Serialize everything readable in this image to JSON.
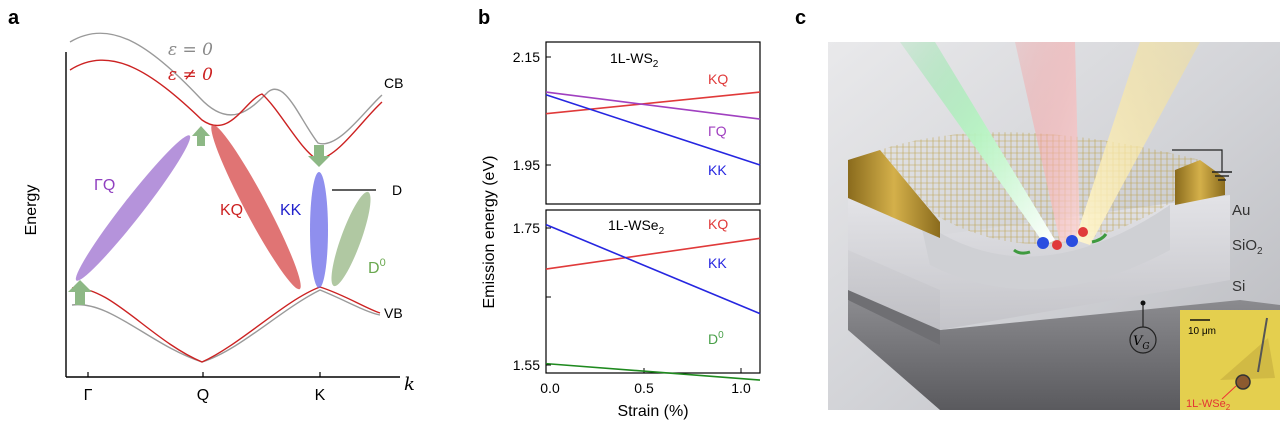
{
  "panel_labels": {
    "a": "a",
    "b": "b",
    "c": "c"
  },
  "panel_a": {
    "legend": {
      "eps_zero": "ε = 0",
      "eps_nonzero": "ε ≠ 0"
    },
    "y_label": "Energy",
    "x_label": "k",
    "x_ticks": [
      "Γ",
      "Q",
      "K"
    ],
    "band_labels": {
      "cb": "CB",
      "vb": "VB",
      "defect": "D"
    },
    "transitions": {
      "gq": "ΓQ",
      "kq": "KQ",
      "kk": "KK",
      "d0": "D",
      "d0_sup": "0"
    },
    "colors": {
      "eps_zero": "#9a9a9a",
      "eps_nonzero": "#cc2222",
      "gq": "#9c6fcf",
      "kq": "#d64545",
      "kk": "#6a6ae8",
      "d0": "#8fb07a",
      "arrow": "#8db885"
    }
  },
  "panel_b": {
    "ylabel": "Emission energy (eV)",
    "xlabel": "Strain (%)",
    "top_title": "1L-WS",
    "top_title_sub": "2",
    "bottom_title": "1L-WSe",
    "bottom_title_sub": "2"
  },
  "chart_data": [
    {
      "type": "line",
      "title": "1L-WS2",
      "xlabel": "",
      "ylabel": "Emission energy (eV)",
      "xlim": [
        0,
        1.1
      ],
      "ylim": [
        1.91,
        2.17
      ],
      "yticks": [
        "1.95",
        "2.15"
      ],
      "series": [
        {
          "name": "KQ",
          "color": "#e03a3a",
          "x": [
            0,
            1.1
          ],
          "y": [
            2.045,
            2.085
          ]
        },
        {
          "name": "ΓQ",
          "color": "#a040c0",
          "x": [
            0,
            1.1
          ],
          "y": [
            2.085,
            2.035
          ]
        },
        {
          "name": "KK",
          "color": "#2626e0",
          "x": [
            0,
            1.1
          ],
          "y": [
            2.08,
            1.95
          ]
        }
      ]
    },
    {
      "type": "line",
      "title": "1L-WSe2",
      "xlabel": "Strain (%)",
      "ylabel": "Emission energy (eV)",
      "xlim": [
        0,
        1.1
      ],
      "ylim": [
        1.5,
        1.78
      ],
      "xticks": [
        "0.0",
        "0.5",
        "1.0"
      ],
      "yticks": [
        "1.55",
        "1.65",
        "1.75"
      ],
      "series": [
        {
          "name": "KQ",
          "color": "#e03a3a",
          "x": [
            0,
            1.1
          ],
          "y": [
            1.69,
            1.735
          ]
        },
        {
          "name": "KK",
          "color": "#2626e0",
          "x": [
            0,
            1.1
          ],
          "y": [
            1.755,
            1.625
          ]
        },
        {
          "name": "D0",
          "color": "#1f8a1f",
          "x": [
            0,
            1.1
          ],
          "y": [
            1.552,
            1.528
          ]
        }
      ]
    }
  ],
  "panel_b_labels": {
    "top": {
      "kq": "KQ",
      "gq": "ΓQ",
      "kk": "KK"
    },
    "bottom": {
      "kq": "KQ",
      "kk": "KK",
      "d0": "D",
      "d0_sup": "0"
    }
  },
  "panel_c": {
    "layers": {
      "au": "Au",
      "sio2": "SiO",
      "sio2_sub": "2",
      "si": "Si"
    },
    "gate": "V",
    "gate_sub": "G",
    "inset_scale": "10 μm",
    "inset_label": "1L-WSe",
    "inset_label_sub": "2"
  }
}
